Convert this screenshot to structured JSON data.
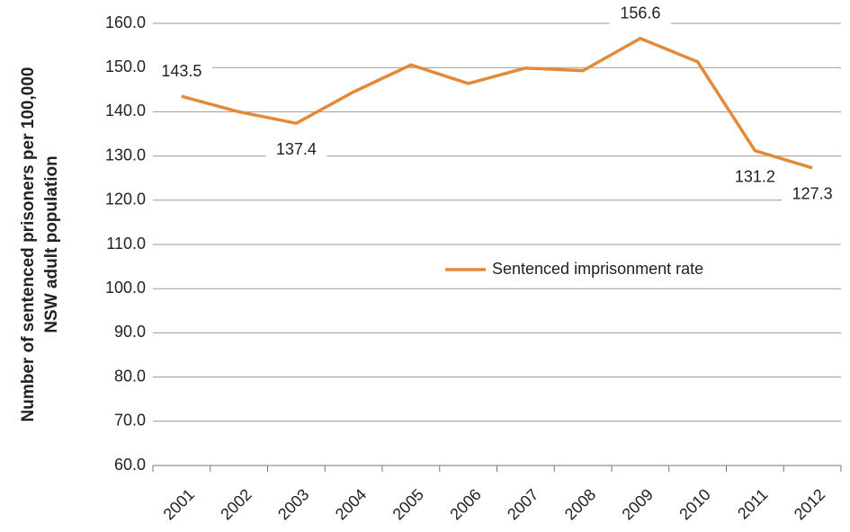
{
  "chart_data": {
    "type": "line",
    "ylabel": [
      "Number of sentenced prisoners per 100,000",
      "NSW adult population"
    ],
    "categories": [
      "2001",
      "2002",
      "2003",
      "2004",
      "2005",
      "2006",
      "2007",
      "2008",
      "2009",
      "2010",
      "2011",
      "2012"
    ],
    "series": [
      {
        "name": "Sentenced imprisonment rate",
        "color": "#e38a3a",
        "values": [
          143.5,
          140.0,
          137.4,
          144.5,
          150.6,
          146.4,
          149.9,
          149.3,
          156.6,
          151.3,
          131.2,
          127.3
        ],
        "value_labels": [
          "143.5",
          null,
          "137.4",
          null,
          null,
          null,
          null,
          null,
          "156.6",
          null,
          "131.2",
          "127.3"
        ]
      }
    ],
    "ylim": [
      60,
      160
    ],
    "yticks": [
      {
        "value": 60,
        "label": "60.0"
      },
      {
        "value": 70,
        "label": "70.0"
      },
      {
        "value": 80,
        "label": "80.0"
      },
      {
        "value": 90,
        "label": "90.0"
      },
      {
        "value": 100,
        "label": "100.0"
      },
      {
        "value": 110,
        "label": "110.0"
      },
      {
        "value": 120,
        "label": "120.0"
      },
      {
        "value": 130,
        "label": "130.0"
      },
      {
        "value": 140,
        "label": "140.0"
      },
      {
        "value": 150,
        "label": "150.0"
      },
      {
        "value": 160,
        "label": "160.0"
      }
    ],
    "grid": true
  }
}
